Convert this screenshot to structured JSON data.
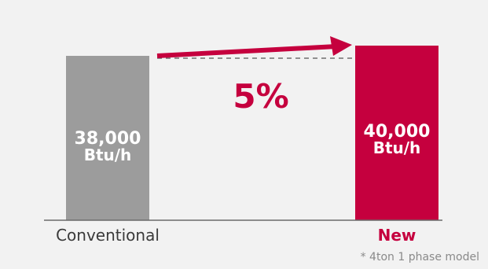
{
  "chart_data": {
    "type": "bar",
    "categories": [
      "Conventional",
      "New"
    ],
    "values": [
      38000,
      40000
    ],
    "value_labels": [
      [
        "38,000",
        "Btu/h"
      ],
      [
        "40,000",
        "Btu/h"
      ]
    ],
    "unit": "Btu/h",
    "increase_label": "5%",
    "footnote": "* 4ton 1 phase model",
    "colors": {
      "conventional_bar": "#9c9c9c",
      "new_bar": "#c5003e",
      "accent": "#c5003e",
      "conventional_label": "#3a3a3a",
      "new_label": "#c5003e",
      "baseline": "#6a6a6a",
      "dash": "#555555",
      "background": "#f2f2f2"
    },
    "grid": false,
    "legend": "none"
  }
}
